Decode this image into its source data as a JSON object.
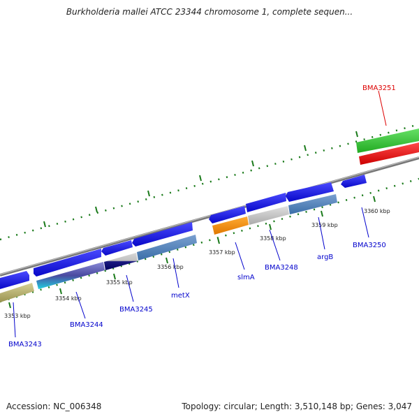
{
  "title": "Burkholderia mallei ATCC 23344 chromosome 1, complete sequen...",
  "footer": {
    "accession": "Accession: NC_006348",
    "summary": "Topology: circular; Length: 3,510,148 bp; Genes: 3,047"
  },
  "colors": {
    "gene_label": "#0000cc",
    "selected_label": "#dd0000",
    "backbone": "#888888",
    "tick": "#1a7a1a",
    "cds": "#1010e0",
    "selected_gene": "#33cc33",
    "selected_cds": "#ee1111"
  },
  "ticks": [
    {
      "label": "3353 kbp"
    },
    {
      "label": "3354 kbp"
    },
    {
      "label": "3355 kbp"
    },
    {
      "label": "3356 kbp"
    },
    {
      "label": "3357 kbp"
    },
    {
      "label": "3358 kbp"
    },
    {
      "label": "3359 kbp"
    },
    {
      "label": "3360 kbp"
    }
  ],
  "gene_labels": [
    {
      "text": "BMA3243",
      "color": "#0000cc"
    },
    {
      "text": "BMA3244",
      "color": "#0000cc"
    },
    {
      "text": "BMA3245",
      "color": "#0000cc"
    },
    {
      "text": "metX",
      "color": "#0000cc"
    },
    {
      "text": "slmA",
      "color": "#0000cc"
    },
    {
      "text": "BMA3248",
      "color": "#0000cc"
    },
    {
      "text": "argB",
      "color": "#0000cc"
    },
    {
      "text": "BMA3250",
      "color": "#0000cc"
    },
    {
      "text": "BMA3251",
      "color": "#dd0000"
    }
  ]
}
